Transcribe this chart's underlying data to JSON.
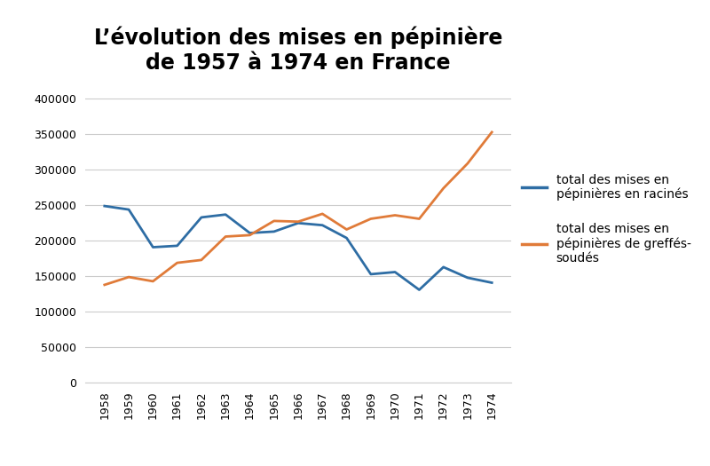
{
  "title": "L’évolution des mises en pépinière\nde 1957 à 1974 en France",
  "years": [
    1958,
    1959,
    1960,
    1961,
    1962,
    1963,
    1964,
    1965,
    1966,
    1967,
    1968,
    1969,
    1970,
    1971,
    1972,
    1973,
    1974
  ],
  "racines": [
    248000,
    243000,
    190000,
    192000,
    232000,
    236000,
    210000,
    212000,
    224000,
    221000,
    203000,
    152000,
    155000,
    130000,
    162000,
    147000,
    140000
  ],
  "greffes": [
    137000,
    148000,
    142000,
    168000,
    172000,
    205000,
    207000,
    227000,
    226000,
    237000,
    215000,
    230000,
    235000,
    230000,
    273000,
    308000,
    352000
  ],
  "racines_color": "#2e6da4",
  "greffes_color": "#e07b39",
  "legend_racines": "total des mises en\npépinières en racinés",
  "legend_greffes": "total des mises en\npépinières de greffés-\nsoudés",
  "ylim": [
    0,
    420000
  ],
  "yticks": [
    0,
    50000,
    100000,
    150000,
    200000,
    250000,
    300000,
    350000,
    400000
  ],
  "title_fontsize": 17,
  "legend_fontsize": 10,
  "tick_fontsize": 9,
  "background_color": "#ffffff",
  "grid_color": "#cccccc",
  "line_width": 2.0
}
